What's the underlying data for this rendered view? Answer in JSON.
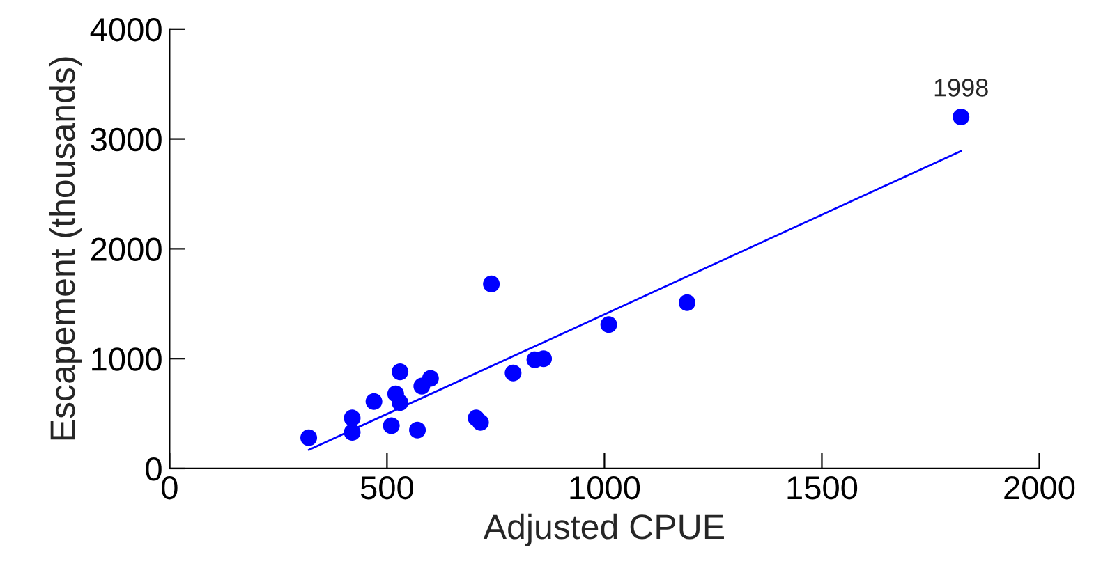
{
  "chart_data": {
    "type": "scatter",
    "xlabel": "Adjusted CPUE",
    "ylabel": "Escapement (thousands)",
    "series": [
      {
        "color": "#0000ff",
        "marker": "circle",
        "x": [
          320,
          420,
          420,
          470,
          510,
          520,
          530,
          530,
          570,
          580,
          600,
          705,
          715,
          740,
          790,
          840,
          860,
          1010,
          1190,
          1820
        ],
        "values": [
          280,
          330,
          460,
          610,
          390,
          680,
          600,
          880,
          350,
          750,
          820,
          460,
          420,
          1680,
          870,
          990,
          1000,
          1310,
          1510,
          3200
        ]
      },
      {
        "type": "line",
        "color": "#0000ff",
        "marker": "none",
        "x": [
          320,
          1820
        ],
        "values": [
          170,
          2890
        ]
      }
    ],
    "annotations": [
      {
        "text": "1998",
        "x": 1820,
        "y": 3200
      }
    ],
    "grid": false,
    "legend": false,
    "xlim": [
      0,
      2000
    ],
    "xticks": [
      0,
      500,
      1000,
      1500,
      2000
    ],
    "ylim": [
      0,
      4000
    ],
    "yticks": [
      0,
      1000,
      2000,
      3000,
      4000
    ]
  }
}
